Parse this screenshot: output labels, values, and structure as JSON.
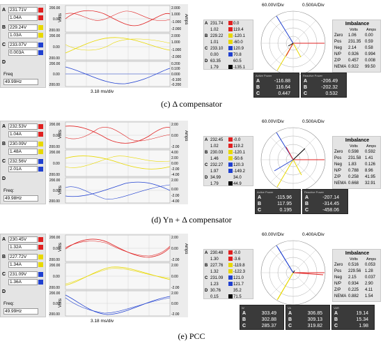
{
  "panels": [
    {
      "id": "c",
      "caption": "(c) Δ compensator",
      "channels": [
        {
          "label": "A",
          "value": "231.71V",
          "color": "#e02020"
        },
        {
          "label": "",
          "value": "1.04A",
          "color": "#e02020"
        },
        {
          "label": "B",
          "value": "229.24V",
          "color": "#e8d800"
        },
        {
          "label": "",
          "value": "1.03A",
          "color": "#e8d800"
        },
        {
          "label": "C",
          "value": "233.07V",
          "color": "#2040d0"
        },
        {
          "label": "",
          "value": "0.003A",
          "color": "#2040d0"
        },
        {
          "label": "D",
          "value": "",
          "color": ""
        }
      ],
      "freq_label": "Freq",
      "freq_value": "49.99Hz",
      "timebase": "3.18 ms/div",
      "wave_left_ticks": [
        "200.00",
        "0.00",
        "-200.00",
        "200.00",
        "0.00",
        "-200.00",
        "200.00",
        "0.00",
        "-200.00"
      ],
      "wave_right_ticks": [
        "2.000",
        "1.000",
        "-1.000",
        "-2.000",
        "2.000",
        "1.000",
        "-1.000",
        "-2.000",
        "0.200",
        "0.100",
        "0.000",
        "-0.100",
        "-0.200"
      ],
      "wave_left_axis": "Volts",
      "wave_right_axis": "Amps",
      "scale_v": "60.00V/Div",
      "scale_a": "0.500A/Div",
      "phasors": [
        {
          "label": "A",
          "v": "231.74",
          "a": "0.0",
          "sw": "#e02020"
        },
        {
          "label": "",
          "v": "1.02",
          "a": "119.4",
          "sw": "#e02020"
        },
        {
          "label": "B",
          "v": "229.22",
          "a": "-120.1",
          "sw": "#e8d800"
        },
        {
          "label": "",
          "v": "1.01",
          "a": "-60.0",
          "sw": "#e8d800"
        },
        {
          "label": "C",
          "v": "233.10",
          "a": "120.9",
          "sw": "#2040d0"
        },
        {
          "label": "",
          "v": "0.00",
          "a": "70.8",
          "sw": "#2040d0"
        },
        {
          "label": "D",
          "v": "63.35",
          "a": "60.5",
          "sw": ""
        },
        {
          "label": "",
          "v": "1.79",
          "a": "-135.1",
          "sw": "#000000"
        }
      ],
      "imbalance": {
        "title": "Imbalance",
        "head_v": "Volts",
        "head_a": "Amps",
        "rows": [
          {
            "name": "Zero",
            "v": "1.06",
            "a": "0.00"
          },
          {
            "name": "Pos",
            "v": "231.35",
            "a": "0.59"
          },
          {
            "name": "Neg",
            "v": "2.14",
            "a": "0.58"
          },
          {
            "name": "N/P",
            "v": "0.926",
            "a": "0.994"
          },
          {
            "name": "Z/P",
            "v": "0.457",
            "a": "0.008"
          },
          {
            "name": "NEMA",
            "v": "0.922",
            "a": "99.50"
          }
        ]
      },
      "power_boxes": [
        {
          "header": "Active Power",
          "rows": [
            {
              "k": "A",
              "v": "-116.88"
            },
            {
              "k": "B",
              "v": "116.64"
            },
            {
              "k": "C",
              "v": "0.447"
            }
          ]
        },
        {
          "header": "Reactive Power",
          "rows": [
            {
              "k": "A",
              "v": "-206.49"
            },
            {
              "k": "B",
              "v": "-202.32"
            },
            {
              "k": "C",
              "v": "0.532"
            }
          ]
        }
      ]
    },
    {
      "id": "d",
      "caption": "(d) Yn + Δ compensator",
      "channels": [
        {
          "label": "A",
          "value": "232.53V",
          "color": "#e02020"
        },
        {
          "label": "",
          "value": "1.04A",
          "color": "#e02020"
        },
        {
          "label": "B",
          "value": "230.09V",
          "color": "#e8d800"
        },
        {
          "label": "",
          "value": "1.48A",
          "color": "#e8d800"
        },
        {
          "label": "C",
          "value": "232.56V",
          "color": "#2040d0"
        },
        {
          "label": "",
          "value": "2.01A",
          "color": "#2040d0"
        },
        {
          "label": "D",
          "value": "",
          "color": ""
        }
      ],
      "freq_label": "Freq:",
      "freq_value": "49.98Hz",
      "timebase": "",
      "wave_left_ticks": [
        "200.00",
        "0.00",
        "-200.00",
        "200.00",
        "0.00",
        "-200.00",
        "200.00",
        "0.00",
        "-200.00"
      ],
      "wave_right_ticks": [
        "2.00",
        "0.00",
        "-2.00",
        "4.00",
        "2.00",
        "0.00",
        "-2.00",
        "-4.00",
        "2.00",
        "0.00",
        "-2.00",
        "-4.00"
      ],
      "wave_left_axis": "Volts",
      "wave_right_axis": "Amps",
      "scale_v": "60.00V/Div",
      "scale_a": "0.500A/Div",
      "phasors": [
        {
          "label": "A",
          "v": "232.45",
          "a": "-0.0",
          "sw": "#e02020"
        },
        {
          "label": "",
          "v": "1.02",
          "a": "119.2",
          "sw": "#e02020"
        },
        {
          "label": "B",
          "v": "230.03",
          "a": "-120.1",
          "sw": "#e8d800"
        },
        {
          "label": "",
          "v": "1.46",
          "a": "-50.6",
          "sw": "#e8d800"
        },
        {
          "label": "C",
          "v": "232.27",
          "a": "120.3",
          "sw": "#2040d0"
        },
        {
          "label": "",
          "v": "1.97",
          "a": "-149.2",
          "sw": "#2040d0"
        },
        {
          "label": "D",
          "v": "34.99",
          "a": "34.0",
          "sw": ""
        },
        {
          "label": "",
          "v": "1.79",
          "a": "44.9",
          "sw": "#000000"
        }
      ],
      "imbalance": {
        "title": "Imbalance",
        "head_v": "Volts",
        "head_a": "Amps",
        "rows": [
          {
            "name": "Zero",
            "v": "0.598",
            "a": "0.592"
          },
          {
            "name": "Pos",
            "v": "231.58",
            "a": "1.41"
          },
          {
            "name": "Neg",
            "v": "1.83",
            "a": "0.126"
          },
          {
            "name": "N/P",
            "v": "0.788",
            "a": "8.96"
          },
          {
            "name": "Z/P",
            "v": "0.258",
            "a": "41.95"
          },
          {
            "name": "NEMA",
            "v": "0.668",
            "a": "32.91"
          }
        ]
      },
      "power_boxes": [
        {
          "header": "Active Power",
          "rows": [
            {
              "k": "A",
              "v": "-115.96"
            },
            {
              "k": "B",
              "v": "117.95"
            },
            {
              "k": "C",
              "v": "0.195"
            }
          ]
        },
        {
          "header": "Reactive Power",
          "rows": [
            {
              "k": "A",
              "v": "-207.14"
            },
            {
              "k": "B",
              "v": "-314.45"
            },
            {
              "k": "C",
              "v": "-458.06"
            }
          ]
        }
      ]
    },
    {
      "id": "e",
      "caption": "(e) PCC",
      "channels": [
        {
          "label": "A",
          "value": "230.45V",
          "color": "#e02020"
        },
        {
          "label": "",
          "value": "1.32A",
          "color": "#e02020"
        },
        {
          "label": "B",
          "value": "227.72V",
          "color": "#e8d800"
        },
        {
          "label": "",
          "value": "1.34A",
          "color": "#e8d800"
        },
        {
          "label": "C",
          "value": "231.09V",
          "color": "#2040d0"
        },
        {
          "label": "",
          "value": "1.36A",
          "color": "#2040d0"
        },
        {
          "label": "D",
          "value": "",
          "color": ""
        }
      ],
      "freq_label": "Freq:",
      "freq_value": "49.99Hz",
      "timebase": "3.18 ms/div",
      "wave_left_ticks": [
        "200.00",
        "0.00",
        "-200.00",
        "200.00",
        "0.00",
        "-200.00",
        "200.00",
        "0.00",
        "-200.00"
      ],
      "wave_right_ticks": [
        "2.00",
        "0.00",
        "-2.00",
        "2.00",
        "0.00",
        "-2.00",
        "2.00",
        "0.00",
        "-2.00"
      ],
      "wave_left_axis": "Volts",
      "wave_right_axis": "Amps",
      "scale_v": "60.00V/Div",
      "scale_a": "0.400A/Div",
      "phasors": [
        {
          "label": "A",
          "v": "230.48",
          "a": "-0.0",
          "sw": "#e02020"
        },
        {
          "label": "",
          "v": "1.30",
          "a": "-3.6",
          "sw": "#e02020"
        },
        {
          "label": "B",
          "v": "227.76",
          "a": "-119.8",
          "sw": "#e8d800"
        },
        {
          "label": "",
          "v": "1.32",
          "a": "-122.3",
          "sw": "#e8d800"
        },
        {
          "label": "C",
          "v": "231.09",
          "a": "121.0",
          "sw": "#2040d0"
        },
        {
          "label": "",
          "v": "1.23",
          "a": "121.7",
          "sw": "#2040d0"
        },
        {
          "label": "D",
          "v": "30.76",
          "a": "35.2",
          "sw": ""
        },
        {
          "label": "",
          "v": "0.15",
          "a": "71.5",
          "sw": "#000000"
        }
      ],
      "imbalance": {
        "title": "Imbalance",
        "head_v": "Volts",
        "head_a": "Amps",
        "rows": [
          {
            "name": "Zero",
            "v": "0.516",
            "a": "0.053"
          },
          {
            "name": "Pos",
            "v": "229.56",
            "a": "1.28"
          },
          {
            "name": "Neg",
            "v": "2.15",
            "a": "0.037"
          },
          {
            "name": "N/P",
            "v": "0.934",
            "a": "2.90"
          },
          {
            "name": "Z/P",
            "v": "0.225",
            "a": "4.11"
          },
          {
            "name": "NEMA",
            "v": "0.882",
            "a": "1.54"
          }
        ]
      },
      "power_boxes": [
        {
          "header": "W",
          "rows": [
            {
              "k": "A",
              "v": "303.49"
            },
            {
              "k": "B",
              "v": "302.88"
            },
            {
              "k": "C",
              "v": "285.37"
            }
          ]
        },
        {
          "header": "VA",
          "rows": [
            {
              "k": "A",
              "v": "306.85"
            },
            {
              "k": "B",
              "v": "309.13"
            },
            {
              "k": "C",
              "v": "319.82"
            }
          ]
        },
        {
          "header": "VAR",
          "rows": [
            {
              "k": "A",
              "v": "19.14"
            },
            {
              "k": "B",
              "v": "15.34"
            },
            {
              "k": "C",
              "v": "1.98"
            }
          ]
        }
      ]
    }
  ]
}
